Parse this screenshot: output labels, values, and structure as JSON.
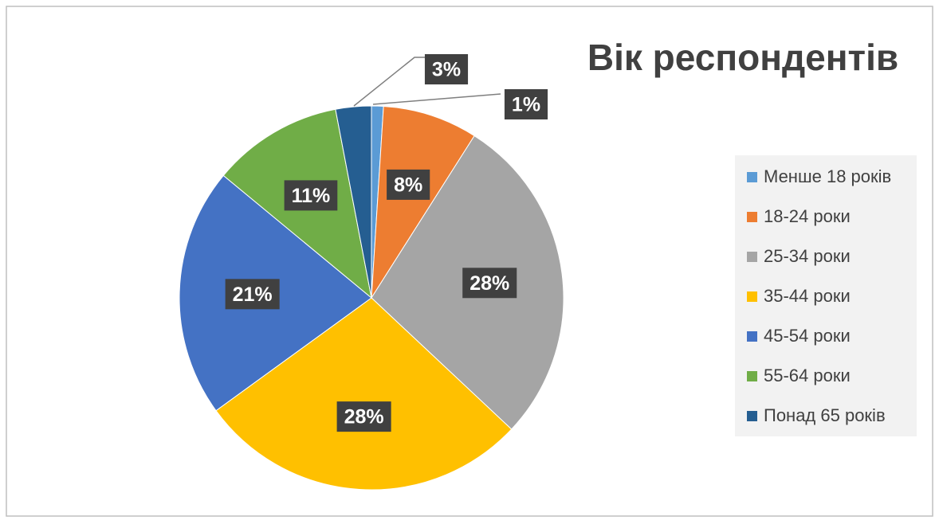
{
  "chart_data": {
    "type": "pie",
    "title": "Вік респондентів",
    "categories": [
      "Менше 18 років",
      "18-24 роки",
      "25-34 роки",
      "35-44 роки",
      "45-54 роки",
      "55-64 роки",
      "Понад 65 років"
    ],
    "values": [
      1,
      8,
      28,
      28,
      21,
      11,
      3
    ],
    "value_labels": [
      "1%",
      "8%",
      "28%",
      "28%",
      "21%",
      "11%",
      "3%"
    ],
    "colors": [
      "#5b9bd5",
      "#ed7d31",
      "#a5a5a5",
      "#ffc000",
      "#4472c4",
      "#70ad47",
      "#255e91"
    ],
    "legend": "right"
  }
}
